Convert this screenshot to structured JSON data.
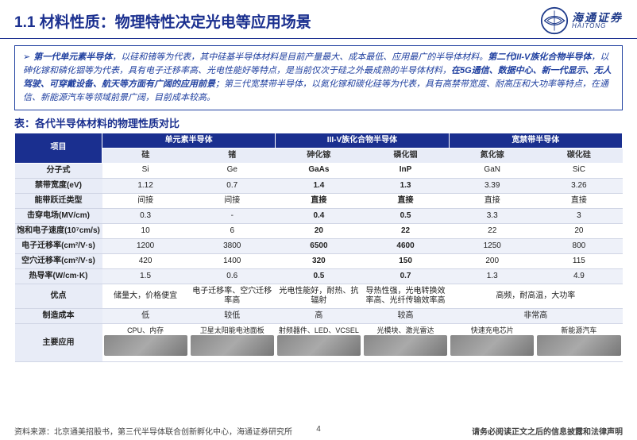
{
  "header": {
    "title_num": "1.1",
    "title_main": "材料性质：",
    "title_sub": "物理特性决定光电等应用场景",
    "logo_cn": "海通证券",
    "logo_en": "HAITONG"
  },
  "summary": {
    "text_parts": [
      {
        "bold": true,
        "text": "第一代单元素半导体"
      },
      {
        "bold": false,
        "text": "，以硅和锗等为代表，其中硅基半导体材料是目前产量最大、成本最低、应用最广的半导体材料。"
      },
      {
        "bold": true,
        "text": "第二代III-V族化合物半导体"
      },
      {
        "bold": false,
        "text": "，以砷化镓和磷化铟等为代表，具有电子迁移率高、光电性能好等特点，是当前仅次于硅之外最成熟的半导体材料，"
      },
      {
        "bold": true,
        "text": "在5G通信、数据中心、新一代显示、无人驾驶、可穿戴设备、航天等方面有广阔的应用前景"
      },
      {
        "bold": false,
        "text": "；第三代宽禁带半导体，以氮化镓和碳化硅等为代表，具有高禁带宽度、耐高压和大功率等特点，在通信、新能源汽车等领域前景广阔，目前成本较高。"
      }
    ]
  },
  "table": {
    "caption": "表：各代半导体材料的物理性质对比",
    "group_headers": {
      "col0": "项目",
      "g1": "单元素半导体",
      "g2": "III-V族化合物半导体",
      "g3": "宽禁带半导体"
    },
    "sub_headers": [
      "硅",
      "锗",
      "砷化镓",
      "磷化铟",
      "氮化镓",
      "碳化硅"
    ],
    "rows": [
      {
        "label": "分子式",
        "cells": [
          "Si",
          "Ge",
          "GaAs",
          "InP",
          "GaN",
          "SiC"
        ],
        "bold_idx": [
          2,
          3
        ]
      },
      {
        "label": "禁带宽度(eV)",
        "cells": [
          "1.12",
          "0.7",
          "1.4",
          "1.3",
          "3.39",
          "3.26"
        ],
        "bold_idx": [
          2,
          3
        ]
      },
      {
        "label": "能带跃迁类型",
        "cells": [
          "间接",
          "间接",
          "直接",
          "直接",
          "直接",
          "直接"
        ],
        "bold_idx": [
          2,
          3
        ]
      },
      {
        "label": "击穿电场(MV/cm)",
        "cells": [
          "0.3",
          "-",
          "0.4",
          "0.5",
          "3.3",
          "3"
        ],
        "bold_idx": [
          2,
          3
        ]
      },
      {
        "label": "饱和电子速度(10⁷cm/s)",
        "cells": [
          "10",
          "6",
          "20",
          "22",
          "22",
          "20"
        ],
        "bold_idx": [
          2,
          3
        ]
      },
      {
        "label": "电子迁移率(cm²/V·s)",
        "cells": [
          "1200",
          "3800",
          "6500",
          "4600",
          "1250",
          "800"
        ],
        "bold_idx": [
          2,
          3
        ]
      },
      {
        "label": "空穴迁移率(cm²/V·s)",
        "cells": [
          "420",
          "1400",
          "320",
          "150",
          "200",
          "115"
        ],
        "bold_idx": [
          2,
          3
        ]
      },
      {
        "label": "热导率(W/cm·K)",
        "cells": [
          "1.5",
          "0.6",
          "0.5",
          "0.7",
          "1.3",
          "4.9"
        ],
        "bold_idx": [
          2,
          3
        ]
      },
      {
        "label": "优点",
        "cells": [
          "储量大，价格便宜",
          "电子迁移率、空穴迁移率高",
          "光电性能好，耐热、抗辐射",
          "导热性强，光电转换效率高、光纤传输效率高",
          "",
          ""
        ],
        "merge": {
          "start": 4,
          "span": 2,
          "text": "高频，耐高温，大功率"
        }
      },
      {
        "label": "制造成本",
        "cells": [
          "低",
          "较低",
          "高",
          "较高",
          "",
          ""
        ],
        "merge": {
          "start": 4,
          "span": 2,
          "text": "非常高"
        }
      },
      {
        "label": "主要应用",
        "cells": [
          "CPU、内存",
          "卫星太阳能电池面板",
          "射频器件、LED、VCSEL",
          "光模块、激光雷达",
          "快速充电芯片",
          "新能源汽车"
        ],
        "images": true
      }
    ]
  },
  "footer": {
    "source": "资料来源：北京通美招股书，第三代半导体联合创新孵化中心，海通证券研究所",
    "page": "4",
    "disclaimer": "请务必阅读正文之后的信息披露和法律声明"
  },
  "colors": {
    "primary": "#1a2f8f",
    "header_bg": "#1a2f8f",
    "row_alt": "#eef1f9",
    "label_bg": "#e8ecf7"
  }
}
